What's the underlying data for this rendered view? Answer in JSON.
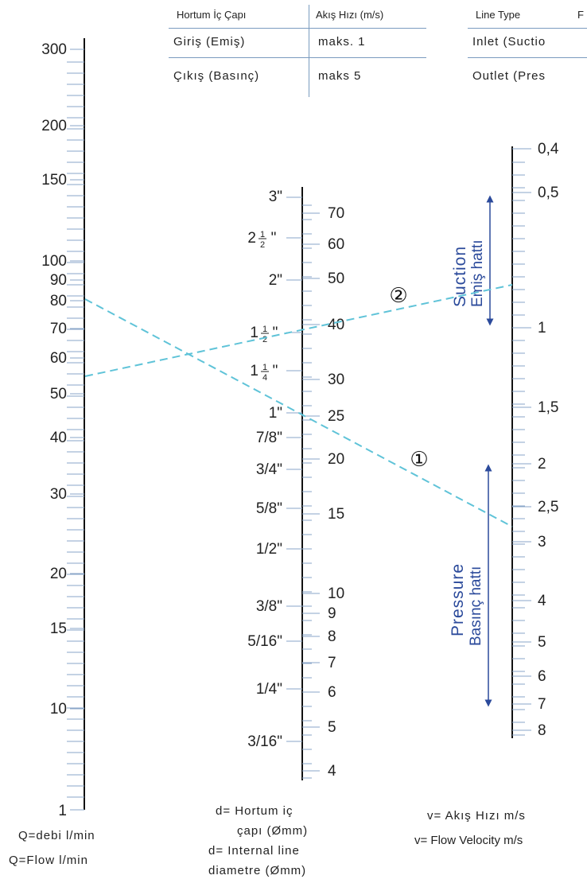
{
  "table_tr": {
    "headers": [
      "Hortum İç Çapı",
      "Akış Hızı (m/s)"
    ],
    "rows": [
      [
        "Giriş (Emiş)",
        "maks. 1"
      ],
      [
        "Çıkış (Basınç)",
        "maks 5"
      ]
    ]
  },
  "table_en": {
    "headers": [
      "Line Type",
      "F"
    ],
    "rows": [
      [
        "Inlet (Suctio"
      ],
      [
        "Outlet (Pres"
      ]
    ]
  },
  "flow_scale": {
    "major_labels": [
      "300",
      "200",
      "150",
      "100",
      "90",
      "80",
      "70",
      "60",
      "50",
      "40",
      "30",
      "20",
      "15",
      "10",
      "1"
    ],
    "caption_tr": "Q=debi l/min",
    "caption_en": "Q=Flow l/min"
  },
  "diameter_scale": {
    "inch_labels": [
      "3\"",
      "2\"",
      "1\"",
      "7/8\"",
      "3/4\"",
      "5/8\"",
      "1/2\"",
      "3/8\"",
      "5/16\"",
      "1/4\"",
      "3/16\""
    ],
    "fraction_labels": [
      {
        "whole": "2",
        "num": "1",
        "den": "2"
      },
      {
        "whole": "1",
        "num": "1",
        "den": "2"
      },
      {
        "whole": "1",
        "num": "1",
        "den": "4"
      }
    ],
    "mm_labels": [
      "70",
      "60",
      "50",
      "40",
      "30",
      "25",
      "20",
      "15",
      "10",
      "9",
      "8",
      "7",
      "6",
      "5",
      "4"
    ],
    "caption_tr_1": "d= Hortum iç",
    "caption_tr_2": "çapı (Ømm)",
    "caption_en_1": "d= Internal line",
    "caption_en_2": "diametre (Ømm)"
  },
  "velocity_scale": {
    "labels": [
      "0,4",
      "0,5",
      "1",
      "1,5",
      "2",
      "2,5",
      "3",
      "4",
      "5",
      "6",
      "7",
      "8"
    ],
    "caption_tr": "v= Akış Hızı m/s",
    "caption_en": "v= Flow Velocity  m/s"
  },
  "zones": {
    "suction_en": "Suction",
    "suction_tr": "Emiş hattı",
    "pressure_en": "Pressure",
    "pressure_tr": "Basınç hattı",
    "color": "#2b4a9b"
  },
  "examples": {
    "line_color": "#5fc3d8",
    "line1_marker": "①",
    "line2_marker": "②"
  }
}
